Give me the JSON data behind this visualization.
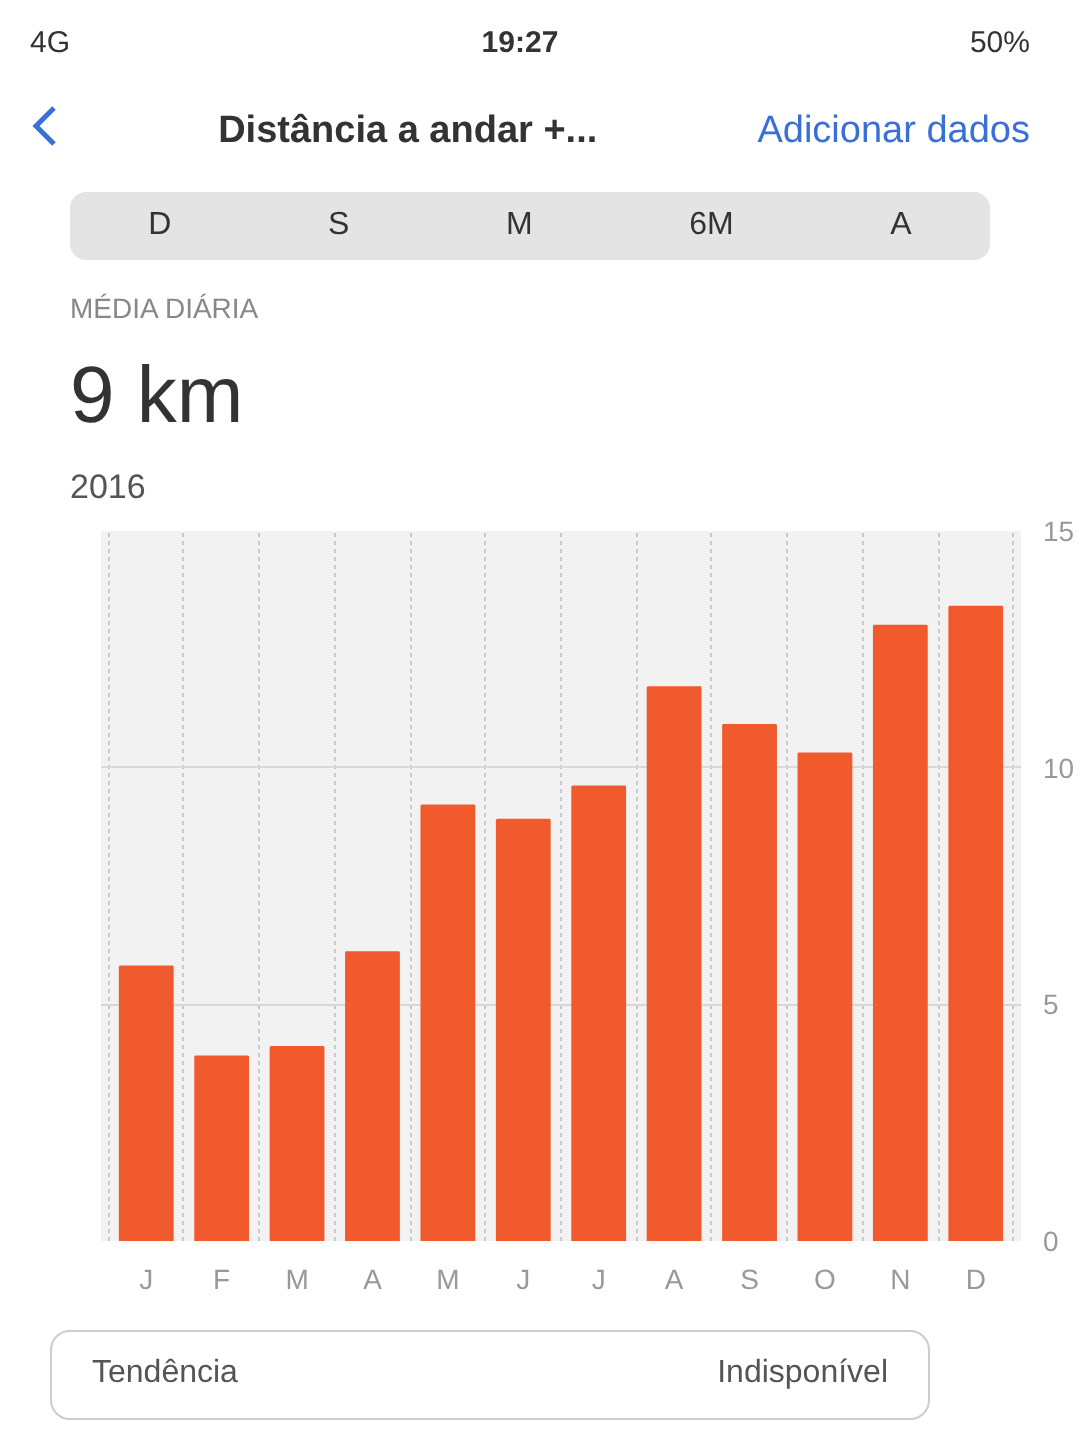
{
  "chart_data": {
    "type": "bar",
    "title": "Distância a andar +...",
    "subtitle": "MÉDIA DIÁRIA",
    "annotations": [
      "19:27",
      "4G",
      "50%",
      "Adicionar dados",
      "D",
      "S",
      "M",
      "6M",
      "A",
      "9 km",
      "2016",
      "Tendência",
      "Indisponível"
    ],
    "categories": [
      "J",
      "F",
      "M",
      "A",
      "M",
      "J",
      "J",
      "A",
      "S",
      "O",
      "N",
      "D"
    ],
    "values": [
      5.8,
      3.9,
      4.1,
      6.1,
      9.2,
      8.9,
      9.6,
      11.7,
      10.9,
      10.3,
      13.0,
      13.4
    ],
    "color": "#f05a2c",
    "ylim": [
      0,
      15
    ],
    "yticks": [
      0,
      5,
      10,
      15
    ],
    "grid": true
  }
}
